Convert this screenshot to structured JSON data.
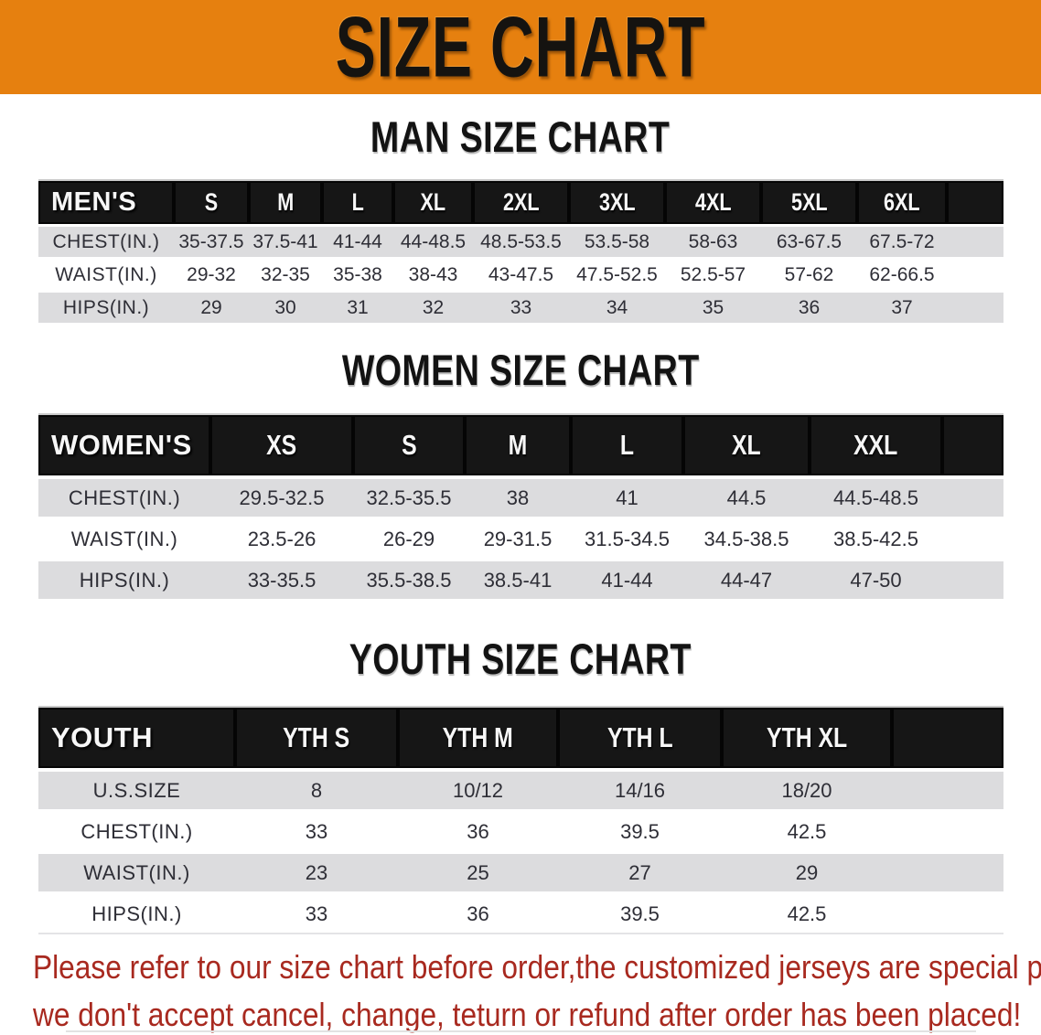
{
  "banner": {
    "title": "SIZE CHART"
  },
  "sections": [
    {
      "title": "MAN SIZE CHART",
      "group_label": "MEN'S",
      "columns": [
        "S",
        "M",
        "L",
        "XL",
        "2XL",
        "3XL",
        "4XL",
        "5XL",
        "6XL"
      ],
      "rows": [
        {
          "label": "CHEST(IN.)",
          "values": [
            "35-37.5",
            "37.5-41",
            "41-44",
            "44-48.5",
            "48.5-53.5",
            "53.5-58",
            "58-63",
            "63-67.5",
            "67.5-72"
          ]
        },
        {
          "label": "WAIST(IN.)",
          "values": [
            "29-32",
            "32-35",
            "35-38",
            "38-43",
            "43-47.5",
            "47.5-52.5",
            "52.5-57",
            "57-62",
            "62-66.5"
          ]
        },
        {
          "label": "HIPS(IN.)",
          "values": [
            "29",
            "30",
            "31",
            "32",
            "33",
            "34",
            "35",
            "36",
            "37"
          ]
        }
      ]
    },
    {
      "title": "WOMEN SIZE CHART",
      "group_label": "WOMEN'S",
      "columns": [
        "XS",
        "S",
        "M",
        "L",
        "XL",
        "XXL"
      ],
      "rows": [
        {
          "label": "CHEST(IN.)",
          "values": [
            "29.5-32.5",
            "32.5-35.5",
            "38",
            "41",
            "44.5",
            "44.5-48.5"
          ]
        },
        {
          "label": "WAIST(IN.)",
          "values": [
            "23.5-26",
            "26-29",
            "29-31.5",
            "31.5-34.5",
            "34.5-38.5",
            "38.5-42.5"
          ]
        },
        {
          "label": "HIPS(IN.)",
          "values": [
            "33-35.5",
            "35.5-38.5",
            "38.5-41",
            "41-44",
            "44-47",
            "47-50"
          ]
        }
      ]
    },
    {
      "title": "YOUTH SIZE CHART",
      "group_label": "YOUTH",
      "columns": [
        "YTH S",
        "YTH M",
        "YTH L",
        "YTH XL"
      ],
      "rows": [
        {
          "label": "U.S.SIZE",
          "values": [
            "8",
            "10/12",
            "14/16",
            "18/20"
          ]
        },
        {
          "label": "CHEST(IN.)",
          "values": [
            "33",
            "36",
            "39.5",
            "42.5"
          ]
        },
        {
          "label": "WAIST(IN.)",
          "values": [
            "23",
            "25",
            "27",
            "29"
          ]
        },
        {
          "label": "HIPS(IN.)",
          "values": [
            "33",
            "36",
            "39.5",
            "42.5"
          ]
        }
      ]
    }
  ],
  "disclaimer": {
    "lines": [
      "Please refer to our size chart before order,the customized jerseys are special products,",
      "we don't accept cancel, change, teturn or refund after order has been placed!"
    ]
  },
  "colors": {
    "banner_bg": "#E6800F",
    "header_bar": "#161616",
    "row_stripe": "#DCDCDE",
    "table_text": "#2E2E36",
    "disclaimer_text": "#A8291F"
  }
}
